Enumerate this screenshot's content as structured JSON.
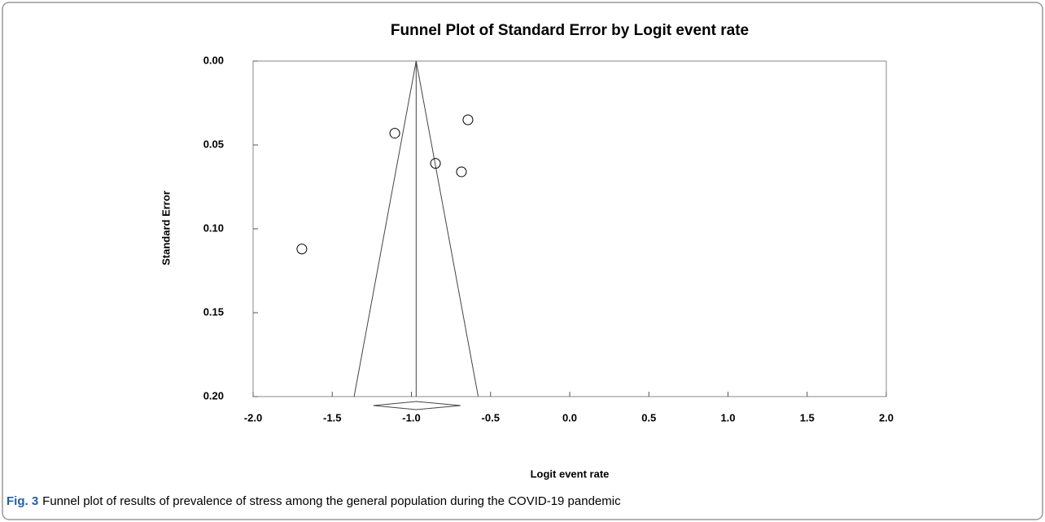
{
  "chart_data": {
    "type": "scatter",
    "title": "Funnel Plot of Standard Error by Logit event rate",
    "xlabel": "Logit event rate",
    "ylabel": "Standard Error",
    "caption": {
      "label": "Fig. 3",
      "text": "Funnel plot of results of prevalence of stress among the general population during the COVID-19 pandemic"
    },
    "xlim": [
      -2.0,
      2.0
    ],
    "xticks": [
      {
        "value": -2.0,
        "label": "-2.0"
      },
      {
        "value": -1.5,
        "label": "-1.5"
      },
      {
        "value": -1.0,
        "label": "-1.0"
      },
      {
        "value": -0.5,
        "label": "-0.5"
      },
      {
        "value": 0,
        "label": "0.0"
      },
      {
        "value": 0.5,
        "label": "0.5"
      },
      {
        "value": 1.0,
        "label": "1.0"
      },
      {
        "value": 1.5,
        "label": "1.5"
      },
      {
        "value": 2.0,
        "label": "2.0"
      }
    ],
    "ylim": [
      0,
      0.2
    ],
    "yticks": [
      {
        "value": 0,
        "label": "0.00"
      },
      {
        "value": 0.05,
        "label": "0.05"
      },
      {
        "value": 0.1,
        "label": "0.10"
      },
      {
        "value": 0.15,
        "label": "0.15"
      },
      {
        "value": 0.2,
        "label": "0.20"
      }
    ],
    "inverted_y": true,
    "series": [
      {
        "x": [
          -0.643,
          -1.105,
          -0.848,
          -0.684,
          -1.692
        ],
        "values": [
          0.035,
          0.043,
          0.061,
          0.066,
          0.112
        ],
        "color": "#000000"
      }
    ],
    "summary": {
      "mean": -0.97,
      "ci": [
        -1.24,
        -0.69
      ]
    }
  }
}
